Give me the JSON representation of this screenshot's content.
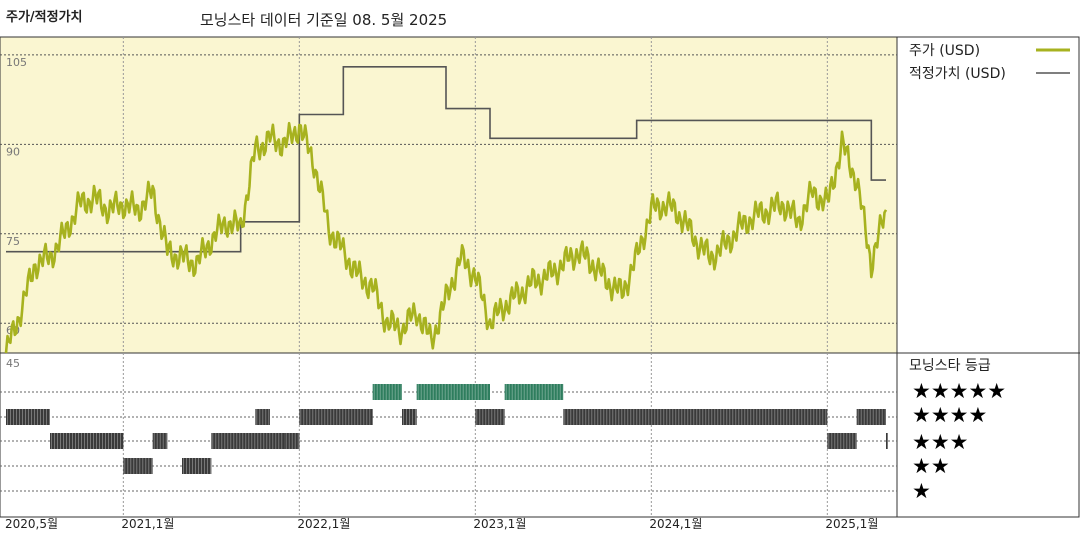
{
  "header": {
    "title": "주가/적정가치",
    "subtitle": "모닝스타 데이터 기준일 08. 5월 2025"
  },
  "legend": {
    "price_label": "주가 (USD)",
    "fair_value_label": "적정가치 (USD)",
    "rating_title": "모닝스타 등급"
  },
  "colors": {
    "price": "#a7b21f",
    "fair_value": "#555555",
    "panel_bg": "#faf6d1",
    "rating_5": "#2e7d5e",
    "rating_other": "#3a3a3a"
  },
  "chart_data": [
    {
      "type": "line",
      "title": "",
      "y_ticks": [
        60,
        75,
        90,
        105
      ],
      "ylim": [
        55,
        108
      ],
      "x_ticks": [
        "2020,5월",
        "2021,1월",
        "2022,1월",
        "2023,1월",
        "2024,1월",
        "2025,1월"
      ],
      "x_range": [
        "2020-05",
        "2025-05"
      ],
      "grid": true,
      "series": [
        {
          "name": "주가 (USD)",
          "x": [
            "2020-05",
            "2020-06",
            "2020-07",
            "2020-08",
            "2020-09",
            "2020-10",
            "2020-11",
            "2020-12",
            "2021-01",
            "2021-02",
            "2021-03",
            "2021-04",
            "2021-05",
            "2021-06",
            "2021-07",
            "2021-08",
            "2021-09",
            "2021-10",
            "2021-11",
            "2021-12",
            "2022-01",
            "2022-02",
            "2022-03",
            "2022-04",
            "2022-05",
            "2022-06",
            "2022-07",
            "2022-08",
            "2022-09",
            "2022-10",
            "2022-11",
            "2022-12",
            "2023-01",
            "2023-02",
            "2023-03",
            "2023-04",
            "2023-05",
            "2023-06",
            "2023-07",
            "2023-08",
            "2023-09",
            "2023-10",
            "2023-11",
            "2023-12",
            "2024-01",
            "2024-02",
            "2024-03",
            "2024-04",
            "2024-05",
            "2024-06",
            "2024-07",
            "2024-08",
            "2024-09",
            "2024-10",
            "2024-11",
            "2024-12",
            "2025-01",
            "2025-02",
            "2025-03",
            "2025-04",
            "2025-05"
          ],
          "values": [
            55,
            62,
            70,
            71,
            75,
            80,
            81,
            79,
            80,
            79,
            82,
            72,
            71,
            70,
            74,
            77,
            76,
            89,
            91,
            90,
            93,
            87,
            76,
            72,
            68,
            66,
            60,
            59,
            62,
            57,
            64,
            71,
            68,
            60,
            63,
            65,
            67,
            68,
            70,
            72,
            70,
            67,
            65,
            71,
            79,
            80,
            78,
            74,
            71,
            73,
            76,
            78,
            79,
            80,
            77,
            82,
            80,
            90,
            84,
            70,
            79
          ],
          "unit": "USD"
        },
        {
          "name": "적정가치 (USD)",
          "x": [
            "2020-05",
            "2020-06",
            "2020-07",
            "2020-08",
            "2020-09",
            "2020-10",
            "2020-11",
            "2020-12",
            "2021-01",
            "2021-02",
            "2021-03",
            "2021-04",
            "2021-05",
            "2021-06",
            "2021-07",
            "2021-08",
            "2021-09",
            "2021-10",
            "2021-11",
            "2021-12",
            "2022-01",
            "2022-02",
            "2022-03",
            "2022-04",
            "2022-05",
            "2022-06",
            "2022-07",
            "2022-08",
            "2022-09",
            "2022-10",
            "2022-11",
            "2022-12",
            "2023-01",
            "2023-02",
            "2023-03",
            "2023-04",
            "2023-05",
            "2023-06",
            "2023-07",
            "2023-08",
            "2023-09",
            "2023-10",
            "2023-11",
            "2023-12",
            "2024-01",
            "2024-02",
            "2024-03",
            "2024-04",
            "2024-05",
            "2024-06",
            "2024-07",
            "2024-08",
            "2024-09",
            "2024-10",
            "2024-11",
            "2024-12",
            "2025-01",
            "2025-02",
            "2025-03",
            "2025-04",
            "2025-05"
          ],
          "values": [
            72,
            72,
            72,
            72,
            72,
            72,
            72,
            72,
            72,
            72,
            72,
            72,
            72,
            72,
            72,
            72,
            77,
            77,
            77,
            77,
            95,
            95,
            95,
            103,
            103,
            103,
            103,
            103,
            103,
            103,
            96,
            96,
            96,
            91,
            91,
            91,
            91,
            91,
            91,
            91,
            91,
            91,
            91,
            94,
            94,
            94,
            94,
            94,
            94,
            94,
            94,
            94,
            94,
            94,
            94,
            94,
            94,
            94,
            94,
            84,
            84
          ],
          "unit": "USD"
        }
      ]
    },
    {
      "type": "heatmap",
      "title": "모닝스타 등급",
      "rows": [
        "★★★★★",
        "★★★★",
        "★★★",
        "★★",
        "★"
      ],
      "x_range": [
        "2020-05",
        "2025-05"
      ],
      "segments": [
        {
          "stars": 4,
          "start": "2020-05",
          "end": "2020-08"
        },
        {
          "stars": 3,
          "start": "2020-08",
          "end": "2021-01"
        },
        {
          "stars": 2,
          "start": "2021-01",
          "end": "2021-03"
        },
        {
          "stars": 3,
          "start": "2021-03",
          "end": "2021-04"
        },
        {
          "stars": 2,
          "start": "2021-05",
          "end": "2021-07"
        },
        {
          "stars": 3,
          "start": "2021-07",
          "end": "2022-01"
        },
        {
          "stars": 4,
          "start": "2021-10",
          "end": "2021-11"
        },
        {
          "stars": 3,
          "start": "2021-12",
          "end": "2022-01"
        },
        {
          "stars": 4,
          "start": "2022-01",
          "end": "2022-06"
        },
        {
          "stars": 5,
          "start": "2022-06",
          "end": "2022-08"
        },
        {
          "stars": 4,
          "start": "2022-08",
          "end": "2022-09"
        },
        {
          "stars": 5,
          "start": "2022-09",
          "end": "2023-02"
        },
        {
          "stars": 4,
          "start": "2023-01",
          "end": "2023-03"
        },
        {
          "stars": 5,
          "start": "2023-03",
          "end": "2023-07"
        },
        {
          "stars": 4,
          "start": "2023-07",
          "end": "2025-01"
        },
        {
          "stars": 3,
          "start": "2025-01",
          "end": "2025-03"
        },
        {
          "stars": 4,
          "start": "2025-03",
          "end": "2025-05"
        },
        {
          "stars": 3,
          "start": "2025-05",
          "end": "2025-05"
        }
      ]
    }
  ]
}
